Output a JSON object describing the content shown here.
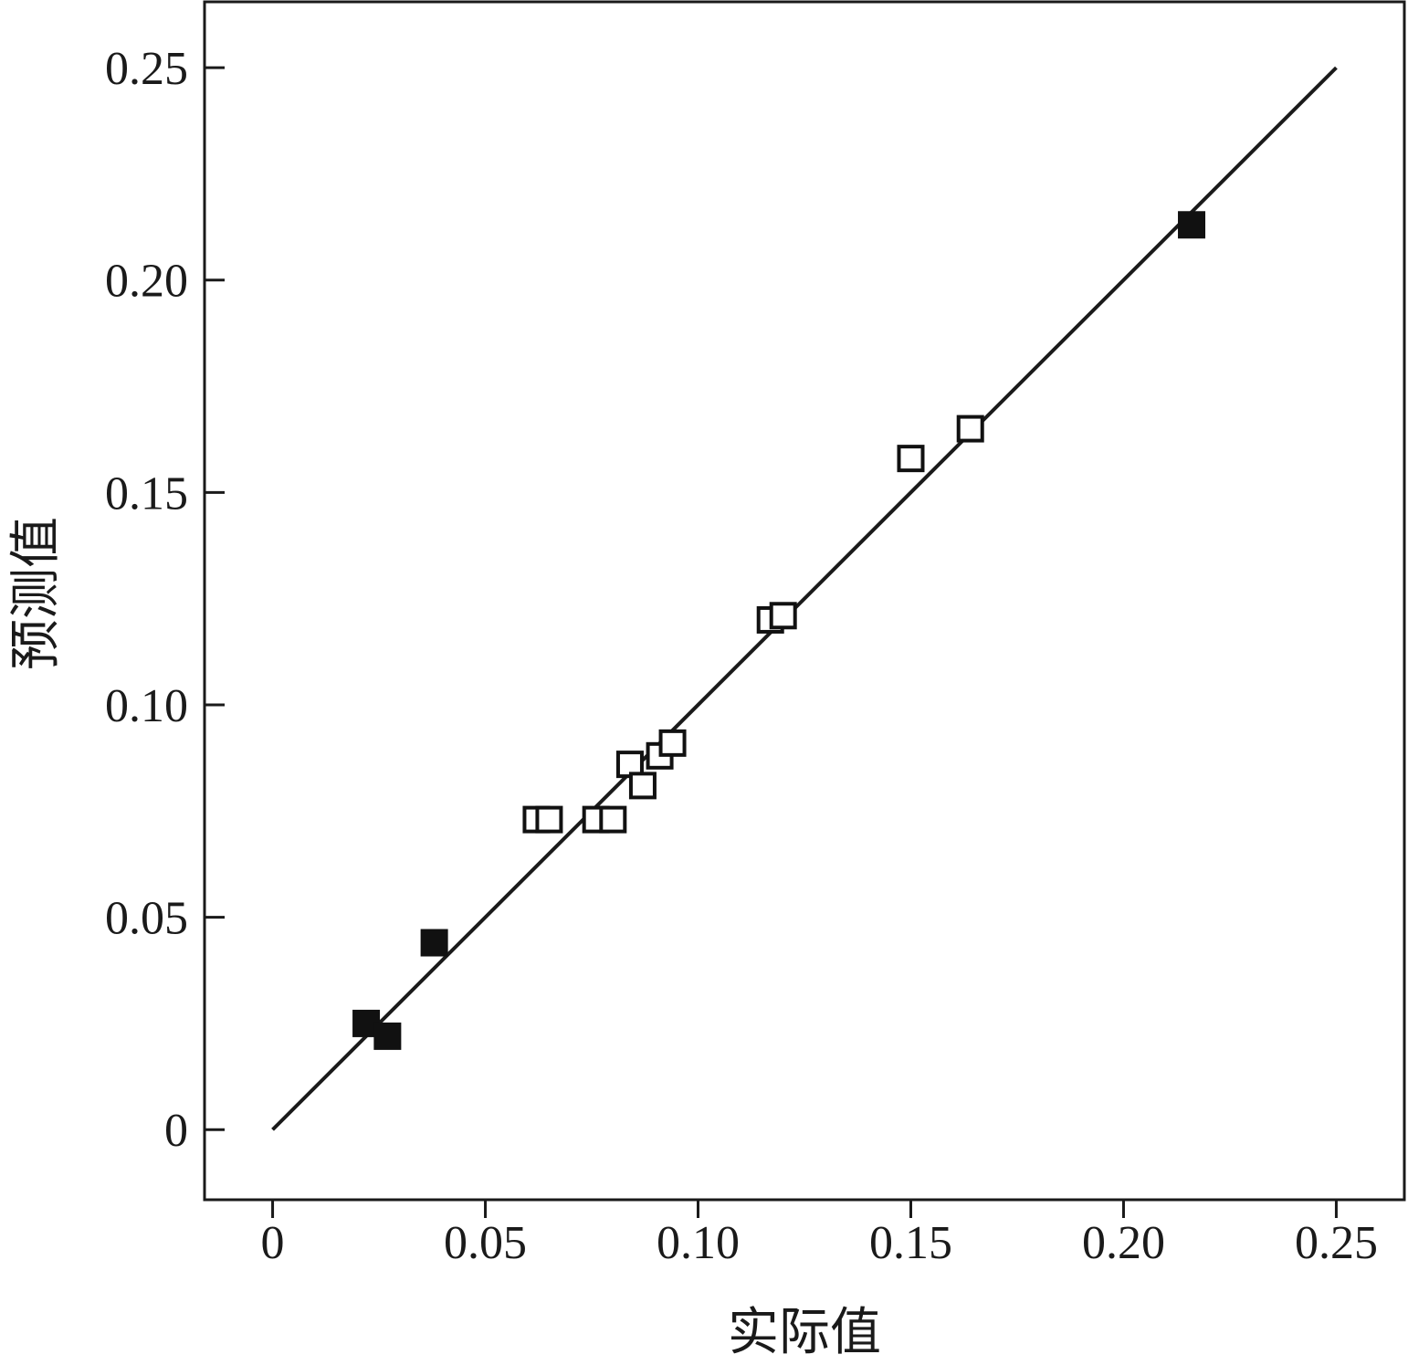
{
  "chart_data": {
    "type": "scatter",
    "title": "",
    "xlabel": "实际值",
    "ylabel": "预测值",
    "xlim": [
      -0.016,
      0.266
    ],
    "ylim": [
      -0.0165,
      0.2655
    ],
    "grid": false,
    "legend": "none",
    "x_ticks": [
      {
        "value": 0,
        "label": "0"
      },
      {
        "value": 0.05,
        "label": "0.05"
      },
      {
        "value": 0.1,
        "label": "0.10"
      },
      {
        "value": 0.15,
        "label": "0.15"
      },
      {
        "value": 0.2,
        "label": "0.20"
      },
      {
        "value": 0.25,
        "label": "0.25"
      }
    ],
    "y_ticks": [
      {
        "value": 0,
        "label": "0"
      },
      {
        "value": 0.05,
        "label": "0.05"
      },
      {
        "value": 0.1,
        "label": "0.10"
      },
      {
        "value": 0.15,
        "label": "0.15"
      },
      {
        "value": 0.2,
        "label": "0.20"
      },
      {
        "value": 0.25,
        "label": "0.25"
      }
    ],
    "reference_line": {
      "x": [
        0,
        0.25
      ],
      "y": [
        0,
        0.25
      ]
    },
    "series": [
      {
        "marker": "filled-square",
        "color": "#111111",
        "points": [
          {
            "x": 0.022,
            "y": 0.025
          },
          {
            "x": 0.027,
            "y": 0.022
          },
          {
            "x": 0.038,
            "y": 0.044
          },
          {
            "x": 0.216,
            "y": 0.213
          }
        ]
      },
      {
        "marker": "open-square",
        "color": "#111111",
        "points": [
          {
            "x": 0.062,
            "y": 0.073
          },
          {
            "x": 0.065,
            "y": 0.073
          },
          {
            "x": 0.076,
            "y": 0.073
          },
          {
            "x": 0.08,
            "y": 0.073
          },
          {
            "x": 0.084,
            "y": 0.086
          },
          {
            "x": 0.087,
            "y": 0.081
          },
          {
            "x": 0.091,
            "y": 0.088
          },
          {
            "x": 0.094,
            "y": 0.091
          },
          {
            "x": 0.117,
            "y": 0.12
          },
          {
            "x": 0.12,
            "y": 0.121
          },
          {
            "x": 0.15,
            "y": 0.158
          },
          {
            "x": 0.164,
            "y": 0.165
          }
        ]
      }
    ]
  }
}
